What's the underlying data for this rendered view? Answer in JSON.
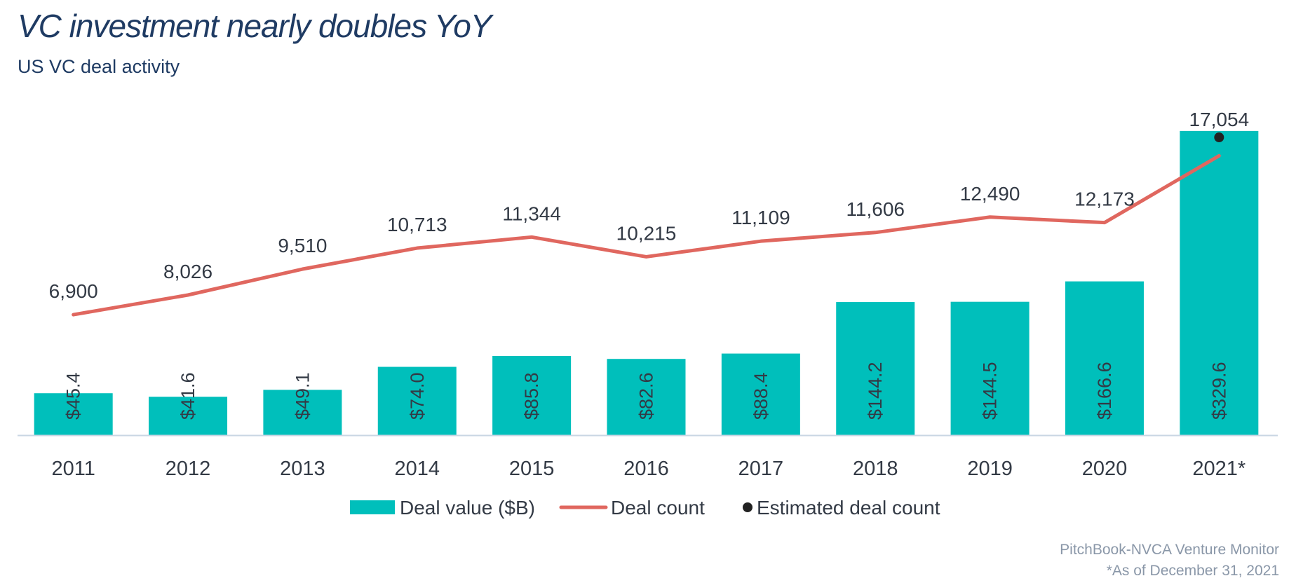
{
  "header": {
    "title": "VC investment nearly doubles YoY",
    "subtitle": "US VC deal activity"
  },
  "footer": {
    "source": "PitchBook-NVCA Venture Monitor",
    "note": "*As of December 31, 2021"
  },
  "colors": {
    "bar": "#00bfbb",
    "line": "#e0675f",
    "estimate_dot": "#222222",
    "text": "#333a45",
    "baseline": "#c9d6e3"
  },
  "chart_data": {
    "type": "bar",
    "title": "VC investment nearly doubles YoY",
    "subtitle": "US VC deal activity",
    "categories": [
      "2011",
      "2012",
      "2013",
      "2014",
      "2015",
      "2016",
      "2017",
      "2018",
      "2019",
      "2020",
      "2021*"
    ],
    "series": [
      {
        "name": "Deal value ($B)",
        "type": "bar",
        "axis": "left",
        "values": [
          45.4,
          41.6,
          49.1,
          74.0,
          85.8,
          82.6,
          88.4,
          144.2,
          144.5,
          166.6,
          329.6
        ],
        "labels": [
          "$45.4",
          "$41.6",
          "$49.1",
          "$74.0",
          "$85.8",
          "$82.6",
          "$88.4",
          "$144.2",
          "$144.5",
          "$166.6",
          "$329.6"
        ]
      },
      {
        "name": "Deal count",
        "type": "line",
        "axis": "right",
        "values": [
          6900,
          8026,
          9510,
          10713,
          11344,
          10215,
          11109,
          11606,
          12490,
          12173,
          16000
        ],
        "labels": [
          "6,900",
          "8,026",
          "9,510",
          "10,713",
          "11,344",
          "10,215",
          "11,109",
          "11,606",
          "12,490",
          "12,173",
          ""
        ]
      },
      {
        "name": "Estimated deal count",
        "type": "scatter",
        "axis": "right",
        "category": "2021*",
        "value": 17054,
        "label": "17,054"
      }
    ],
    "legend": {
      "position": "bottom-center",
      "entries": [
        "Deal value ($B)",
        "Deal count",
        "Estimated deal count"
      ]
    },
    "ylim_left": [
      0,
      350
    ],
    "ylim_right": [
      0,
      18500
    ],
    "xlabel": "",
    "ylabel": "",
    "grid": false
  }
}
